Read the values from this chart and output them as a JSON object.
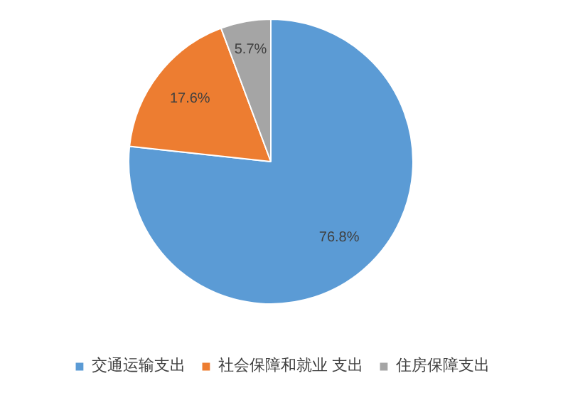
{
  "chart_data": {
    "type": "pie",
    "categories": [
      "交通运输支出",
      "社会保障和就业 支出",
      "住房保障支出"
    ],
    "values": [
      76.8,
      17.6,
      5.7
    ],
    "colors": [
      "#5b9bd5",
      "#ed7d31",
      "#a5a5a5"
    ],
    "value_labels": [
      "76.8%",
      "17.6%",
      "5.7%"
    ],
    "legend": "bottom"
  }
}
